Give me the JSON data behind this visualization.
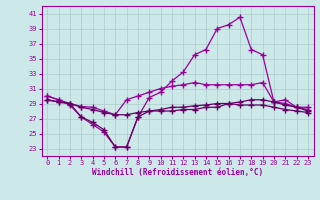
{
  "title": "",
  "xlabel": "Windchill (Refroidissement éolien,°C)",
  "background_color": "#cce8e8",
  "grid_color": "#aacccc",
  "line_color": "#990099",
  "line_color2": "#660066",
  "x": [
    0,
    1,
    2,
    3,
    4,
    5,
    6,
    7,
    8,
    9,
    10,
    11,
    12,
    13,
    14,
    15,
    16,
    17,
    18,
    19,
    20,
    21,
    22,
    23
  ],
  "line1_y": [
    30.0,
    29.5,
    28.8,
    27.2,
    26.2,
    25.2,
    23.2,
    23.2,
    27.2,
    29.8,
    30.5,
    32.0,
    33.2,
    35.5,
    36.2,
    39.0,
    39.5,
    40.5,
    36.2,
    35.5,
    29.2,
    29.5,
    28.5,
    28.5
  ],
  "line2_y": [
    30.0,
    29.5,
    29.0,
    28.6,
    28.5,
    28.0,
    27.5,
    29.5,
    30.0,
    30.5,
    31.0,
    31.3,
    31.5,
    31.8,
    31.5,
    31.5,
    31.5,
    31.5,
    31.5,
    31.8,
    29.2,
    29.0,
    28.5,
    28.2
  ],
  "line3_y": [
    29.5,
    29.2,
    29.0,
    28.5,
    28.2,
    27.8,
    27.5,
    27.5,
    27.8,
    28.0,
    28.2,
    28.5,
    28.5,
    28.7,
    28.8,
    29.0,
    29.0,
    29.2,
    29.5,
    29.5,
    29.2,
    28.8,
    28.5,
    28.0
  ],
  "line4_y": [
    29.5,
    29.2,
    29.0,
    27.2,
    26.5,
    25.5,
    23.2,
    23.2,
    27.2,
    28.0,
    28.0,
    28.0,
    28.2,
    28.2,
    28.5,
    28.5,
    29.0,
    28.8,
    28.8,
    28.8,
    28.5,
    28.2,
    28.0,
    27.8
  ],
  "ylim": [
    22,
    42
  ],
  "yticks": [
    23,
    25,
    27,
    29,
    31,
    33,
    35,
    37,
    39,
    41
  ],
  "xticks": [
    0,
    1,
    2,
    3,
    4,
    5,
    6,
    7,
    8,
    9,
    10,
    11,
    12,
    13,
    14,
    15,
    16,
    17,
    18,
    19,
    20,
    21,
    22,
    23
  ]
}
